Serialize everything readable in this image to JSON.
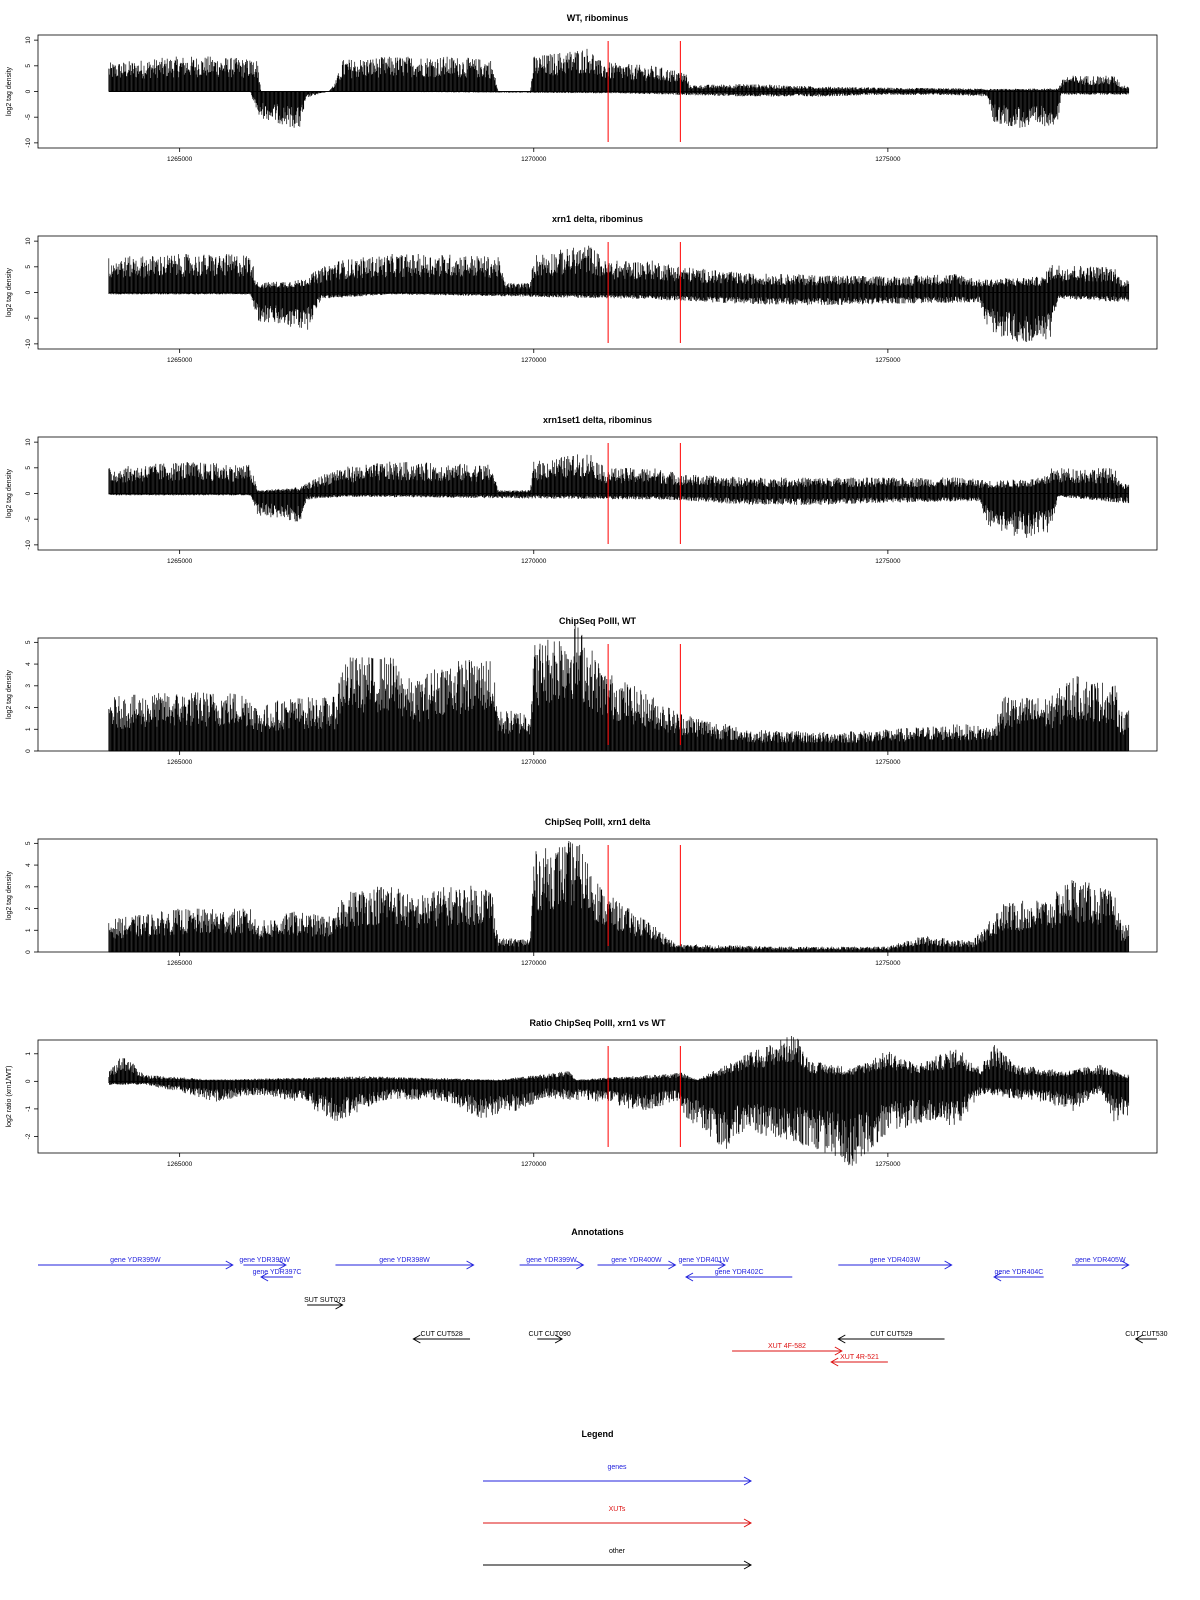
{
  "chart_data": [
    {
      "type": "bar",
      "title": "WT, ribominus",
      "ylabel": "log2 tag density",
      "ylim": [
        -11,
        11
      ],
      "yticks": [
        -10,
        -5,
        0,
        5,
        10
      ],
      "xlim": [
        1263000,
        1278800
      ],
      "xticks": [
        1265000,
        1270000,
        1275000
      ],
      "xtick_labels": [
        "1265000",
        "1270000",
        "1275000"
      ],
      "red_lines": [
        1271050,
        1272070
      ],
      "profile_positive": [
        [
          1264000,
          4.5
        ],
        [
          1264500,
          5
        ],
        [
          1265000,
          5.5
        ],
        [
          1265500,
          5.5
        ],
        [
          1266100,
          5
        ],
        [
          1266150,
          0
        ],
        [
          1267100,
          0
        ],
        [
          1267200,
          1.5
        ],
        [
          1267300,
          5
        ],
        [
          1268000,
          5.5
        ],
        [
          1268800,
          5.5
        ],
        [
          1269400,
          5
        ],
        [
          1269500,
          0
        ],
        [
          1269950,
          0
        ],
        [
          1270000,
          5.5
        ],
        [
          1270800,
          7
        ],
        [
          1270900,
          5
        ],
        [
          1271100,
          4.5
        ],
        [
          1271700,
          4
        ],
        [
          1272150,
          3
        ],
        [
          1272200,
          1
        ],
        [
          1273000,
          1.2
        ],
        [
          1274000,
          0.8
        ],
        [
          1275000,
          0.6
        ],
        [
          1276000,
          0.5
        ],
        [
          1276500,
          0.4
        ],
        [
          1277400,
          0.5
        ],
        [
          1277500,
          2.5
        ],
        [
          1278200,
          2.5
        ],
        [
          1278300,
          1
        ]
      ],
      "profile_negative": [
        [
          1264000,
          0
        ],
        [
          1266000,
          0
        ],
        [
          1266100,
          -4
        ],
        [
          1266700,
          -6
        ],
        [
          1266800,
          -1
        ],
        [
          1267100,
          0
        ],
        [
          1271200,
          -0.3
        ],
        [
          1273000,
          -0.8
        ],
        [
          1274000,
          -0.8
        ],
        [
          1275000,
          -0.5
        ],
        [
          1276000,
          -0.6
        ],
        [
          1276400,
          -0.8
        ],
        [
          1276500,
          -5
        ],
        [
          1277000,
          -6
        ],
        [
          1277400,
          -5
        ],
        [
          1277450,
          -0.5
        ],
        [
          1278300,
          -0.5
        ]
      ]
    },
    {
      "type": "bar",
      "title": "xrn1 delta, ribominus",
      "ylabel": "log2 tag density",
      "ylim": [
        -11,
        11
      ],
      "yticks": [
        -10,
        -5,
        0,
        5,
        10
      ],
      "xlim": [
        1263000,
        1278800
      ],
      "xticks": [
        1265000,
        1270000,
        1275000
      ],
      "xtick_labels": [
        "1265000",
        "1270000",
        "1275000"
      ],
      "red_lines": [
        1271050,
        1272070
      ],
      "profile_positive": [
        [
          1264000,
          5.5
        ],
        [
          1265000,
          6
        ],
        [
          1266000,
          6
        ],
        [
          1266100,
          1.5
        ],
        [
          1266700,
          2
        ],
        [
          1267200,
          5
        ],
        [
          1268000,
          6
        ],
        [
          1269000,
          6
        ],
        [
          1269500,
          5.5
        ],
        [
          1269600,
          1.5
        ],
        [
          1269950,
          1.5
        ],
        [
          1270000,
          6
        ],
        [
          1270800,
          7.5
        ],
        [
          1271000,
          5
        ],
        [
          1271700,
          5
        ],
        [
          1272150,
          4
        ],
        [
          1273000,
          3
        ],
        [
          1274000,
          2.8
        ],
        [
          1275000,
          2.5
        ],
        [
          1276000,
          3
        ],
        [
          1276300,
          2
        ],
        [
          1276500,
          2.2
        ],
        [
          1277200,
          2.5
        ],
        [
          1277300,
          4.5
        ],
        [
          1278200,
          4
        ],
        [
          1278300,
          2
        ]
      ],
      "profile_negative": [
        [
          1264000,
          -0.3
        ],
        [
          1266000,
          -0.3
        ],
        [
          1266100,
          -4.5
        ],
        [
          1266800,
          -6
        ],
        [
          1267000,
          -1
        ],
        [
          1268000,
          -0.3
        ],
        [
          1271500,
          -1
        ],
        [
          1273000,
          -1.8
        ],
        [
          1274000,
          -2
        ],
        [
          1275000,
          -1.8
        ],
        [
          1276300,
          -1.5
        ],
        [
          1276400,
          -6
        ],
        [
          1277000,
          -8.5
        ],
        [
          1277300,
          -7
        ],
        [
          1277400,
          -1
        ],
        [
          1278300,
          -1.5
        ]
      ]
    },
    {
      "type": "bar",
      "title": "xrn1set1 delta, ribominus",
      "ylabel": "log2 tag density",
      "ylim": [
        -11,
        11
      ],
      "yticks": [
        -10,
        -5,
        0,
        5,
        10
      ],
      "xlim": [
        1263000,
        1278800
      ],
      "xticks": [
        1265000,
        1270000,
        1275000
      ],
      "xtick_labels": [
        "1265000",
        "1270000",
        "1275000"
      ],
      "red_lines": [
        1271050,
        1272070
      ],
      "profile_positive": [
        [
          1264000,
          4
        ],
        [
          1265000,
          5
        ],
        [
          1266000,
          4.5
        ],
        [
          1266100,
          0.5
        ],
        [
          1266700,
          1
        ],
        [
          1267200,
          4
        ],
        [
          1268000,
          5
        ],
        [
          1269400,
          4.5
        ],
        [
          1269500,
          0.5
        ],
        [
          1269950,
          0.5
        ],
        [
          1270000,
          5
        ],
        [
          1270800,
          6.5
        ],
        [
          1271000,
          4
        ],
        [
          1271700,
          4
        ],
        [
          1272150,
          3
        ],
        [
          1273000,
          2.5
        ],
        [
          1274000,
          2.5
        ],
        [
          1275000,
          2.5
        ],
        [
          1276000,
          2.5
        ],
        [
          1276500,
          2
        ],
        [
          1277200,
          2.5
        ],
        [
          1277300,
          4
        ],
        [
          1278200,
          4
        ],
        [
          1278300,
          1.5
        ]
      ],
      "profile_negative": [
        [
          1264000,
          -0.3
        ],
        [
          1266000,
          -0.3
        ],
        [
          1266100,
          -3.5
        ],
        [
          1266700,
          -4.5
        ],
        [
          1266800,
          -1
        ],
        [
          1267300,
          -0.5
        ],
        [
          1272000,
          -1
        ],
        [
          1273000,
          -1.8
        ],
        [
          1274000,
          -1.8
        ],
        [
          1275000,
          -1.5
        ],
        [
          1276300,
          -1.2
        ],
        [
          1276400,
          -5
        ],
        [
          1277000,
          -7.5
        ],
        [
          1277300,
          -6
        ],
        [
          1277400,
          -0.5
        ],
        [
          1278300,
          -1.5
        ]
      ]
    },
    {
      "type": "bar",
      "title": "ChipSeq PolII, WT",
      "ylabel": "log2 tag density",
      "ylim": [
        0,
        5.2
      ],
      "yticks": [
        0,
        1,
        2,
        3,
        4,
        5
      ],
      "xlim": [
        1263000,
        1278800
      ],
      "xticks": [
        1265000,
        1270000,
        1275000
      ],
      "xtick_labels": [
        "1265000",
        "1270000",
        "1275000"
      ],
      "red_lines": [
        1271050,
        1272070
      ],
      "profile_positive": [
        [
          1264000,
          2
        ],
        [
          1265000,
          2.2
        ],
        [
          1266000,
          2.2
        ],
        [
          1266100,
          1.6
        ],
        [
          1266500,
          2
        ],
        [
          1267200,
          2
        ],
        [
          1267300,
          3.5
        ],
        [
          1268000,
          3.5
        ],
        [
          1268300,
          2.5
        ],
        [
          1268700,
          3.3
        ],
        [
          1269400,
          3.5
        ],
        [
          1269500,
          1.5
        ],
        [
          1269950,
          1.5
        ],
        [
          1270000,
          4
        ],
        [
          1270600,
          4.8
        ],
        [
          1271000,
          3
        ],
        [
          1271700,
          2
        ],
        [
          1272000,
          1.5
        ],
        [
          1273000,
          0.8
        ],
        [
          1274000,
          0.7
        ],
        [
          1275000,
          0.8
        ],
        [
          1276000,
          1
        ],
        [
          1276500,
          0.9
        ],
        [
          1276600,
          2
        ],
        [
          1277300,
          2
        ],
        [
          1277600,
          2.8
        ],
        [
          1278200,
          2.5
        ],
        [
          1278300,
          1.5
        ]
      ],
      "profile_negative": []
    },
    {
      "type": "bar",
      "title": "ChipSeq PolII, xrn1 delta",
      "ylabel": "log2 tag density",
      "ylim": [
        0,
        5.2
      ],
      "yticks": [
        0,
        1,
        2,
        3,
        4,
        5
      ],
      "xlim": [
        1263000,
        1278800
      ],
      "xticks": [
        1265000,
        1270000,
        1275000
      ],
      "xtick_labels": [
        "1265000",
        "1270000",
        "1275000"
      ],
      "red_lines": [
        1271050,
        1272070
      ],
      "profile_positive": [
        [
          1264000,
          1.2
        ],
        [
          1265000,
          1.6
        ],
        [
          1266000,
          1.6
        ],
        [
          1266100,
          1.1
        ],
        [
          1266600,
          1.5
        ],
        [
          1267200,
          1.3
        ],
        [
          1267300,
          2.2
        ],
        [
          1268000,
          2.6
        ],
        [
          1268300,
          2
        ],
        [
          1268700,
          2.4
        ],
        [
          1269400,
          2.5
        ],
        [
          1269500,
          0.5
        ],
        [
          1269950,
          0.5
        ],
        [
          1270000,
          3.7
        ],
        [
          1270600,
          4.2
        ],
        [
          1271000,
          2.2
        ],
        [
          1271700,
          1
        ],
        [
          1272000,
          0.3
        ],
        [
          1273500,
          0.2
        ],
        [
          1275000,
          0.2
        ],
        [
          1275500,
          0.6
        ],
        [
          1276200,
          0.4
        ],
        [
          1276600,
          1.8
        ],
        [
          1277300,
          2
        ],
        [
          1277600,
          2.8
        ],
        [
          1278200,
          2.2
        ],
        [
          1278300,
          1
        ]
      ],
      "profile_negative": []
    },
    {
      "type": "area",
      "title": "Ratio ChipSeq PolII, xrn1 vs WT",
      "ylabel": "log2 ratio (xrn1/WT)",
      "ylim": [
        -2.6,
        1.5
      ],
      "yticks": [
        -2,
        -1,
        0,
        1
      ],
      "xlim": [
        1263000,
        1278800
      ],
      "xticks": [
        1265000,
        1270000,
        1275000
      ],
      "xtick_labels": [
        "1265000",
        "1270000",
        "1275000"
      ],
      "red_lines": [
        1271050,
        1272070
      ],
      "profile_positive": [
        [
          1264000,
          0.3
        ],
        [
          1264200,
          0.8
        ],
        [
          1264500,
          0.2
        ],
        [
          1264800,
          0.15
        ],
        [
          1265500,
          0.05
        ],
        [
          1267600,
          0.15
        ],
        [
          1269500,
          0.05
        ],
        [
          1270500,
          0.3
        ],
        [
          1270600,
          0.05
        ],
        [
          1272100,
          0.25
        ],
        [
          1272300,
          0.05
        ],
        [
          1273000,
          0.8
        ],
        [
          1273700,
          1.4
        ],
        [
          1273900,
          0.6
        ],
        [
          1274500,
          0.4
        ],
        [
          1275000,
          0.9
        ],
        [
          1275400,
          0.5
        ],
        [
          1276000,
          1
        ],
        [
          1276300,
          0.4
        ],
        [
          1276500,
          1.1
        ],
        [
          1276800,
          0.5
        ],
        [
          1277500,
          0.3
        ],
        [
          1278000,
          0.5
        ],
        [
          1278300,
          0.2
        ]
      ],
      "profile_negative": [
        [
          1264000,
          -0.1
        ],
        [
          1264500,
          -0.1
        ],
        [
          1265000,
          -0.3
        ],
        [
          1265500,
          -0.6
        ],
        [
          1266000,
          -0.4
        ],
        [
          1266700,
          -0.6
        ],
        [
          1267200,
          -1.2
        ],
        [
          1267600,
          -0.8
        ],
        [
          1268000,
          -0.5
        ],
        [
          1268800,
          -0.6
        ],
        [
          1269200,
          -1.1
        ],
        [
          1269700,
          -0.9
        ],
        [
          1270200,
          -0.5
        ],
        [
          1271000,
          -0.6
        ],
        [
          1271500,
          -0.9
        ],
        [
          1272000,
          -0.6
        ],
        [
          1272200,
          -1.2
        ],
        [
          1272700,
          -2
        ],
        [
          1273000,
          -1.5
        ],
        [
          1273500,
          -1.7
        ],
        [
          1274000,
          -2
        ],
        [
          1274500,
          -2.5
        ],
        [
          1275000,
          -1.5
        ],
        [
          1275500,
          -1.2
        ],
        [
          1276000,
          -1.3
        ],
        [
          1276300,
          -0.4
        ],
        [
          1277200,
          -0.6
        ],
        [
          1277600,
          -0.9
        ],
        [
          1278000,
          -0.3
        ],
        [
          1278200,
          -1.2
        ],
        [
          1278400,
          -1
        ]
      ]
    }
  ],
  "annotations": {
    "title": "Annotations",
    "xlim": [
      1263000,
      1278800
    ],
    "colors": {
      "genes": "#2222dd",
      "xuts": "#dd1111",
      "other": "#000000"
    },
    "features": [
      {
        "label": "gene YDR395W",
        "kind": "genes",
        "start": 1263000,
        "end": 1265750,
        "dir": "+",
        "row": 0
      },
      {
        "label": "gene YDR396W",
        "kind": "genes",
        "start": 1265900,
        "end": 1266500,
        "dir": "+",
        "row": 0
      },
      {
        "label": "gene YDR397C",
        "kind": "genes",
        "start": 1266150,
        "end": 1266600,
        "dir": "-",
        "row": 1
      },
      {
        "label": "gene YDR398W",
        "kind": "genes",
        "start": 1267200,
        "end": 1269150,
        "dir": "+",
        "row": 0
      },
      {
        "label": "gene YDR399W",
        "kind": "genes",
        "start": 1269800,
        "end": 1270700,
        "dir": "+",
        "row": 0
      },
      {
        "label": "gene YDR400W",
        "kind": "genes",
        "start": 1270900,
        "end": 1272000,
        "dir": "+",
        "row": 0
      },
      {
        "label": "gene YDR401W",
        "kind": "genes",
        "start": 1272100,
        "end": 1272700,
        "dir": "+",
        "row": 0
      },
      {
        "label": "gene YDR402C",
        "kind": "genes",
        "start": 1272150,
        "end": 1273650,
        "dir": "-",
        "row": 1
      },
      {
        "label": "gene YDR403W",
        "kind": "genes",
        "start": 1274300,
        "end": 1275900,
        "dir": "+",
        "row": 0
      },
      {
        "label": "gene YDR404C",
        "kind": "genes",
        "start": 1276500,
        "end": 1277200,
        "dir": "-",
        "row": 1
      },
      {
        "label": "gene YDR405W",
        "kind": "genes",
        "start": 1277600,
        "end": 1278400,
        "dir": "+",
        "row": 0
      },
      {
        "label": "SUT SUT073",
        "kind": "other",
        "start": 1266800,
        "end": 1267300,
        "dir": "+",
        "row": 2
      },
      {
        "label": "CUT CUT528",
        "kind": "other",
        "start": 1268300,
        "end": 1269100,
        "dir": "-",
        "row": 3
      },
      {
        "label": "CUT CUT090",
        "kind": "other",
        "start": 1270050,
        "end": 1270400,
        "dir": "+",
        "row": 3
      },
      {
        "label": "CUT CUT529",
        "kind": "other",
        "start": 1274300,
        "end": 1275800,
        "dir": "-",
        "row": 3
      },
      {
        "label": "CUT CUT530",
        "kind": "other",
        "start": 1278500,
        "end": 1278800,
        "dir": "-",
        "row": 3
      },
      {
        "label": "XUT 4F-582",
        "kind": "xuts",
        "start": 1272800,
        "end": 1274350,
        "dir": "+",
        "row": 4
      },
      {
        "label": "XUT 4R-521",
        "kind": "xuts",
        "start": 1274200,
        "end": 1275000,
        "dir": "-",
        "row": 5
      }
    ]
  },
  "legend": {
    "title": "Legend",
    "items": [
      {
        "label": "genes",
        "color": "#2222dd"
      },
      {
        "label": "XUTs",
        "color": "#dd1111"
      },
      {
        "label": "other",
        "color": "#000000"
      }
    ]
  }
}
